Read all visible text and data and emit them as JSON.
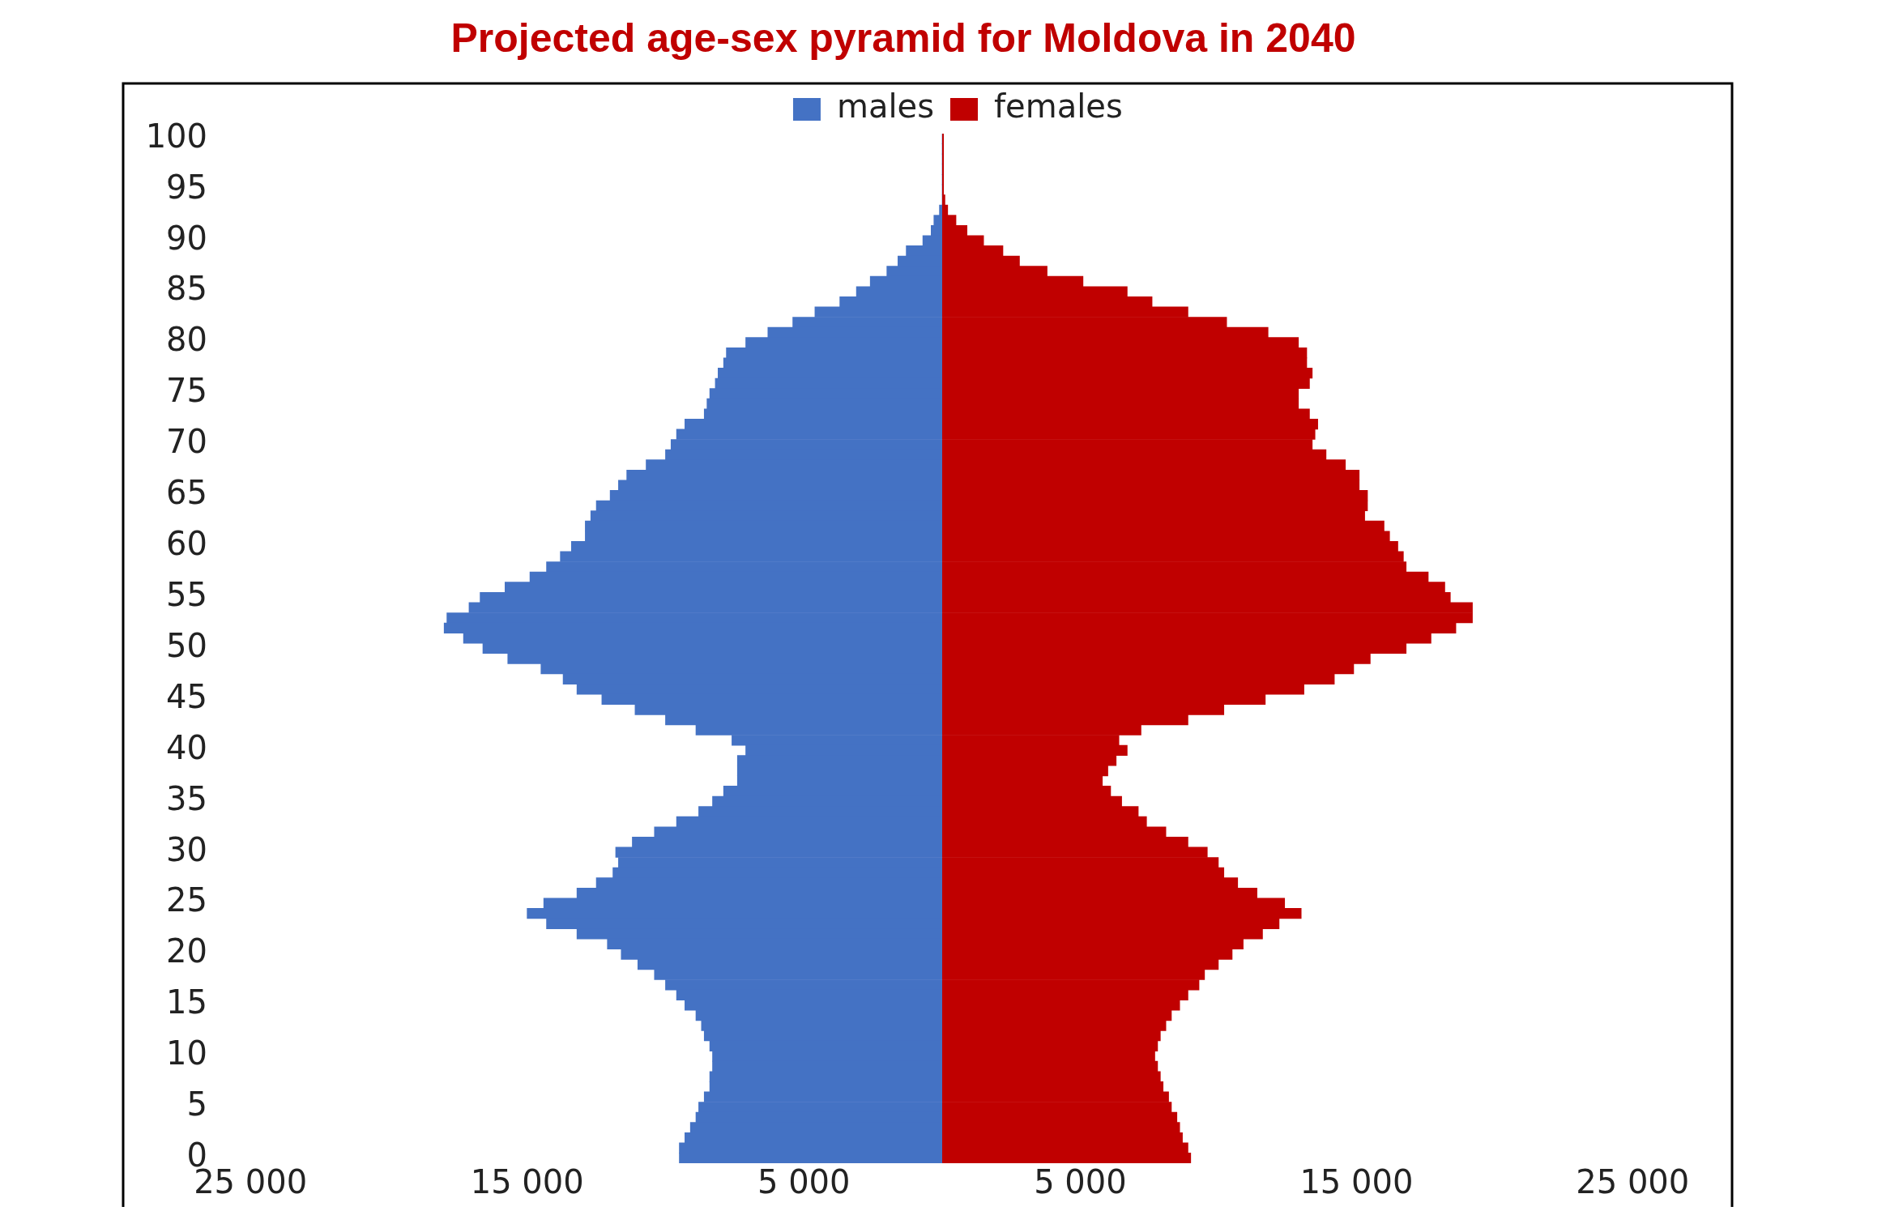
{
  "chart_data": [
    {
      "type": "bar",
      "orientation": "horizontal",
      "title": "Projected age-sex pyramid for Moldova in 2040",
      "legend": "top right",
      "categories": [
        "100",
        null,
        null,
        null,
        null,
        "95",
        null,
        null,
        null,
        null,
        "90",
        null,
        null,
        null,
        null,
        "85",
        null,
        null,
        null,
        null,
        "80",
        null,
        null,
        null,
        null,
        "75",
        null,
        null,
        null,
        null,
        "70",
        null,
        null,
        null,
        null,
        "65",
        null,
        null,
        null,
        null,
        "60",
        null,
        null,
        null,
        null,
        "55",
        null,
        null,
        null,
        null,
        "50",
        null,
        null,
        null,
        null,
        "45",
        null,
        null,
        null,
        null,
        "40",
        null,
        null,
        null,
        null,
        "35",
        null,
        null,
        null,
        null,
        "30",
        null,
        null,
        null,
        null,
        "25",
        null,
        null,
        null,
        null,
        "20",
        null,
        null,
        null,
        null,
        "15",
        null,
        null,
        null,
        null,
        "10",
        null,
        null,
        null,
        null,
        "5",
        null,
        null,
        null,
        null,
        "0"
      ],
      "xlim": [
        29600,
        0
      ],
      "xticks": [
        {
          "value": 25000,
          "label": "25 000"
        },
        {
          "value": 15000,
          "label": "15 000"
        },
        {
          "value": 5000,
          "label": "5 000"
        }
      ],
      "series": [
        {
          "name": "males",
          "color": "#4472c4",
          "values": [
            0,
            0,
            0,
            0,
            0,
            0,
            0,
            100,
            300,
            400,
            700,
            1300,
            1600,
            2000,
            2600,
            3100,
            3700,
            4600,
            5400,
            6300,
            7100,
            7800,
            7900,
            8100,
            8200,
            8400,
            8500,
            8600,
            9300,
            9600,
            9800,
            10000,
            10700,
            11400,
            11700,
            12000,
            12500,
            12700,
            12900,
            12900,
            13400,
            13800,
            14300,
            14900,
            15800,
            16700,
            17100,
            17900,
            18000,
            17300,
            16600,
            15700,
            14500,
            13700,
            13200,
            12300,
            11100,
            10000,
            8900,
            7600,
            7100,
            7400,
            7400,
            7400,
            7900,
            8300,
            8800,
            9600,
            10400,
            11200,
            11800,
            11700,
            11900,
            12500,
            13200,
            14400,
            15000,
            14300,
            13200,
            12100,
            11600,
            11000,
            10400,
            10000,
            9600,
            9300,
            8900,
            8700,
            8600,
            8400,
            8300,
            8300,
            8400,
            8400,
            8600,
            8800,
            8900,
            9100,
            9300,
            9500,
            9500
          ]
        }
      ]
    },
    {
      "type": "bar",
      "orientation": "horizontal",
      "legend": "top left",
      "tick_labels": "x",
      "categories": [
        "100",
        null,
        null,
        null,
        null,
        "95",
        null,
        null,
        null,
        null,
        "90",
        null,
        null,
        null,
        null,
        "85",
        null,
        null,
        null,
        null,
        "80",
        null,
        null,
        null,
        null,
        "75",
        null,
        null,
        null,
        null,
        "70",
        null,
        null,
        null,
        null,
        "65",
        null,
        null,
        null,
        null,
        "60",
        null,
        null,
        null,
        null,
        "55",
        null,
        null,
        null,
        null,
        "50",
        null,
        null,
        null,
        null,
        "45",
        null,
        null,
        null,
        null,
        "40",
        null,
        null,
        null,
        null,
        "35",
        null,
        null,
        null,
        null,
        "30",
        null,
        null,
        null,
        null,
        "25",
        null,
        null,
        null,
        null,
        "20",
        null,
        null,
        null,
        null,
        "15",
        null,
        null,
        null,
        null,
        "10",
        null,
        null,
        null,
        null,
        "5",
        null,
        null,
        null,
        null,
        "0"
      ],
      "xlim": [
        0,
        28600
      ],
      "xticks": [
        {
          "value": 5000,
          "label": "5 000"
        },
        {
          "value": 15000,
          "label": "15 000"
        },
        {
          "value": 25000,
          "label": "25 000"
        }
      ],
      "series": [
        {
          "name": "females",
          "color": "#c00000",
          "values": [
            50,
            50,
            50,
            50,
            50,
            50,
            100,
            200,
            500,
            900,
            1500,
            2200,
            2800,
            3800,
            5100,
            6700,
            7600,
            8900,
            10300,
            11800,
            12900,
            13200,
            13200,
            13400,
            13300,
            12900,
            12900,
            13300,
            13600,
            13500,
            13400,
            13900,
            14600,
            15100,
            15100,
            15400,
            15400,
            15300,
            16000,
            16200,
            16500,
            16700,
            16800,
            17600,
            18200,
            18400,
            19200,
            19200,
            18600,
            17700,
            16800,
            15500,
            14900,
            14200,
            13100,
            11700,
            10200,
            8900,
            7200,
            6400,
            6700,
            6300,
            6000,
            5800,
            6100,
            6500,
            7100,
            7400,
            8100,
            8900,
            9600,
            10000,
            10200,
            10700,
            11400,
            12400,
            13000,
            12200,
            11600,
            10900,
            10500,
            10000,
            9500,
            9300,
            8900,
            8600,
            8300,
            8100,
            7900,
            7800,
            7700,
            7800,
            7900,
            8000,
            8200,
            8300,
            8500,
            8600,
            8700,
            8900,
            9000
          ]
        }
      ]
    }
  ]
}
